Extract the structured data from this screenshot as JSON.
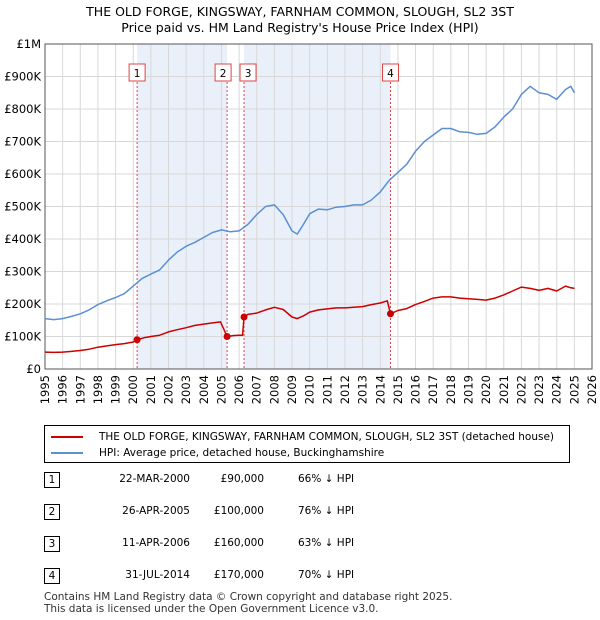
{
  "title": "THE OLD FORGE, KINGSWAY, FARNHAM COMMON, SLOUGH, SL2 3ST",
  "subtitle": "Price paid vs. HM Land Registry's House Price Index (HPI)",
  "colors": {
    "property": "#cc0000",
    "hpi": "#5b8fd4",
    "band": "#eaf0fa",
    "grid": "#d8d8d8"
  },
  "chart_data": {
    "type": "line",
    "xlim": [
      1995,
      2026
    ],
    "ylim": [
      0,
      1000000
    ],
    "y_ticks": [
      {
        "v": 0,
        "label": "£0"
      },
      {
        "v": 100000,
        "label": "£100K"
      },
      {
        "v": 200000,
        "label": "£200K"
      },
      {
        "v": 300000,
        "label": "£300K"
      },
      {
        "v": 400000,
        "label": "£400K"
      },
      {
        "v": 500000,
        "label": "£500K"
      },
      {
        "v": 600000,
        "label": "£600K"
      },
      {
        "v": 700000,
        "label": "£700K"
      },
      {
        "v": 800000,
        "label": "£800K"
      },
      {
        "v": 900000,
        "label": "£900K"
      },
      {
        "v": 1000000,
        "label": "£1M"
      }
    ],
    "x_ticks": [
      "1995",
      "1996",
      "1997",
      "1998",
      "1999",
      "2000",
      "2001",
      "2002",
      "2003",
      "2004",
      "2005",
      "2006",
      "2007",
      "2008",
      "2009",
      "2010",
      "2011",
      "2012",
      "2013",
      "2014",
      "2015",
      "2016",
      "2017",
      "2018",
      "2019",
      "2020",
      "2021",
      "2022",
      "2023",
      "2024",
      "2025",
      "2026"
    ],
    "shaded_ranges": [
      [
        2000.22,
        2005.32
      ],
      [
        2006.28,
        2014.58
      ]
    ],
    "sales": [
      {
        "id": "1",
        "x": 2000.22,
        "y": 90000
      },
      {
        "id": "2",
        "x": 2005.32,
        "y": 100000
      },
      {
        "id": "3",
        "x": 2006.28,
        "y": 160000
      },
      {
        "id": "4",
        "x": 2014.58,
        "y": 170000
      }
    ],
    "series": [
      {
        "name": "THE OLD FORGE, KINGSWAY, FARNHAM COMMON, SLOUGH, SL2 3ST (detached house)",
        "color": "#cc0000",
        "points": [
          [
            1995.0,
            52000
          ],
          [
            1995.5,
            51000
          ],
          [
            1996.0,
            52000
          ],
          [
            1996.5,
            54000
          ],
          [
            1997.0,
            57000
          ],
          [
            1997.5,
            61000
          ],
          [
            1998.0,
            67000
          ],
          [
            1998.5,
            71000
          ],
          [
            1999.0,
            75000
          ],
          [
            1999.5,
            78000
          ],
          [
            2000.0,
            83000
          ],
          [
            2000.22,
            90000
          ],
          [
            2000.6,
            96000
          ],
          [
            2001.0,
            100000
          ],
          [
            2001.5,
            104000
          ],
          [
            2002.0,
            114000
          ],
          [
            2002.5,
            121000
          ],
          [
            2003.0,
            127000
          ],
          [
            2003.5,
            134000
          ],
          [
            2004.0,
            138000
          ],
          [
            2004.5,
            142000
          ],
          [
            2004.95,
            145000
          ],
          [
            2005.0,
            138000
          ],
          [
            2005.32,
            100000
          ],
          [
            2005.7,
            103000
          ],
          [
            2006.0,
            104000
          ],
          [
            2006.2,
            104000
          ],
          [
            2006.28,
            160000
          ],
          [
            2006.5,
            168000
          ],
          [
            2007.0,
            172000
          ],
          [
            2007.5,
            182000
          ],
          [
            2008.0,
            190000
          ],
          [
            2008.5,
            183000
          ],
          [
            2009.0,
            160000
          ],
          [
            2009.3,
            155000
          ],
          [
            2009.7,
            165000
          ],
          [
            2010.0,
            175000
          ],
          [
            2010.5,
            182000
          ],
          [
            2011.0,
            185000
          ],
          [
            2011.5,
            188000
          ],
          [
            2012.0,
            188000
          ],
          [
            2012.5,
            190000
          ],
          [
            2013.0,
            192000
          ],
          [
            2013.5,
            198000
          ],
          [
            2014.0,
            203000
          ],
          [
            2014.4,
            210000
          ],
          [
            2014.58,
            170000
          ],
          [
            2015.0,
            180000
          ],
          [
            2015.5,
            186000
          ],
          [
            2016.0,
            198000
          ],
          [
            2016.5,
            208000
          ],
          [
            2017.0,
            218000
          ],
          [
            2017.5,
            222000
          ],
          [
            2018.0,
            222000
          ],
          [
            2018.5,
            218000
          ],
          [
            2019.0,
            216000
          ],
          [
            2019.5,
            214000
          ],
          [
            2020.0,
            212000
          ],
          [
            2020.5,
            218000
          ],
          [
            2021.0,
            228000
          ],
          [
            2021.5,
            240000
          ],
          [
            2022.0,
            252000
          ],
          [
            2022.5,
            248000
          ],
          [
            2023.0,
            242000
          ],
          [
            2023.5,
            248000
          ],
          [
            2024.0,
            240000
          ],
          [
            2024.5,
            255000
          ],
          [
            2024.8,
            250000
          ],
          [
            2025.0,
            248000
          ]
        ]
      },
      {
        "name": "HPI: Average price, detached house, Buckinghamshire",
        "color": "#5b8fd4",
        "points": [
          [
            1995.0,
            155000
          ],
          [
            1995.5,
            152000
          ],
          [
            1996.0,
            155000
          ],
          [
            1996.5,
            162000
          ],
          [
            1997.0,
            170000
          ],
          [
            1997.5,
            182000
          ],
          [
            1998.0,
            198000
          ],
          [
            1998.5,
            210000
          ],
          [
            1999.0,
            220000
          ],
          [
            1999.5,
            232000
          ],
          [
            2000.0,
            255000
          ],
          [
            2000.5,
            278000
          ],
          [
            2001.0,
            292000
          ],
          [
            2001.5,
            305000
          ],
          [
            2002.0,
            335000
          ],
          [
            2002.5,
            360000
          ],
          [
            2003.0,
            378000
          ],
          [
            2003.5,
            390000
          ],
          [
            2004.0,
            405000
          ],
          [
            2004.5,
            420000
          ],
          [
            2005.0,
            428000
          ],
          [
            2005.5,
            422000
          ],
          [
            2006.0,
            425000
          ],
          [
            2006.5,
            445000
          ],
          [
            2007.0,
            475000
          ],
          [
            2007.5,
            500000
          ],
          [
            2008.0,
            505000
          ],
          [
            2008.5,
            475000
          ],
          [
            2009.0,
            425000
          ],
          [
            2009.3,
            415000
          ],
          [
            2009.7,
            450000
          ],
          [
            2010.0,
            478000
          ],
          [
            2010.5,
            492000
          ],
          [
            2011.0,
            490000
          ],
          [
            2011.5,
            498000
          ],
          [
            2012.0,
            500000
          ],
          [
            2012.5,
            505000
          ],
          [
            2013.0,
            505000
          ],
          [
            2013.5,
            520000
          ],
          [
            2014.0,
            545000
          ],
          [
            2014.5,
            580000
          ],
          [
            2015.0,
            605000
          ],
          [
            2015.5,
            630000
          ],
          [
            2016.0,
            670000
          ],
          [
            2016.5,
            700000
          ],
          [
            2017.0,
            720000
          ],
          [
            2017.5,
            740000
          ],
          [
            2018.0,
            740000
          ],
          [
            2018.5,
            730000
          ],
          [
            2019.0,
            728000
          ],
          [
            2019.5,
            722000
          ],
          [
            2020.0,
            725000
          ],
          [
            2020.5,
            745000
          ],
          [
            2021.0,
            775000
          ],
          [
            2021.5,
            800000
          ],
          [
            2022.0,
            845000
          ],
          [
            2022.5,
            870000
          ],
          [
            2023.0,
            850000
          ],
          [
            2023.5,
            845000
          ],
          [
            2024.0,
            830000
          ],
          [
            2024.5,
            860000
          ],
          [
            2024.8,
            870000
          ],
          [
            2025.0,
            850000
          ]
        ]
      }
    ]
  },
  "legend": {
    "property_label": "THE OLD FORGE, KINGSWAY, FARNHAM COMMON, SLOUGH, SL2 3ST (detached house)",
    "hpi_label": "HPI: Average price, detached house, Buckinghamshire"
  },
  "transactions": [
    {
      "num": "1",
      "date": "22-MAR-2000",
      "price": "£90,000",
      "hpi": "66% ↓ HPI"
    },
    {
      "num": "2",
      "date": "26-APR-2005",
      "price": "£100,000",
      "hpi": "76% ↓ HPI"
    },
    {
      "num": "3",
      "date": "11-APR-2006",
      "price": "£160,000",
      "hpi": "63% ↓ HPI"
    },
    {
      "num": "4",
      "date": "31-JUL-2014",
      "price": "£170,000",
      "hpi": "70% ↓ HPI"
    }
  ],
  "footer": {
    "line1": "Contains HM Land Registry data © Crown copyright and database right 2025.",
    "line2": "This data is licensed under the Open Government Licence v3.0."
  }
}
